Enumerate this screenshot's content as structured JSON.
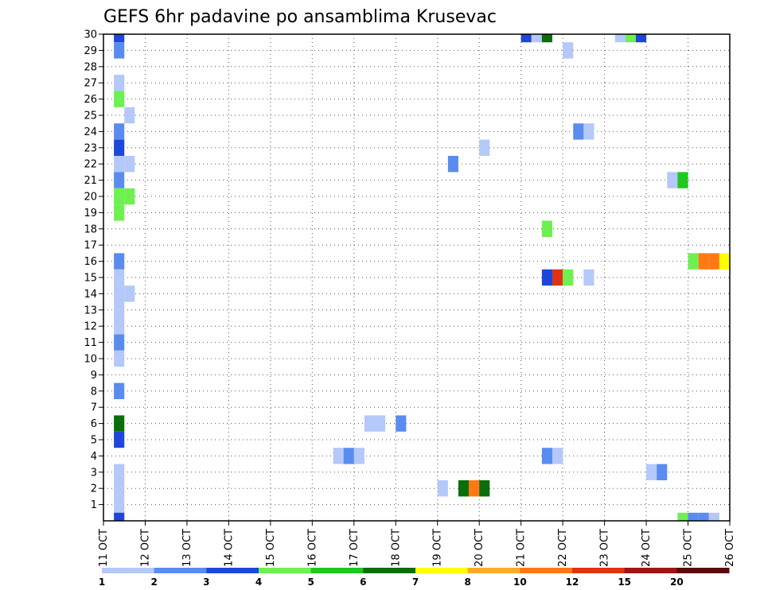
{
  "chart_data": {
    "type": "heatmap",
    "title": "GEFS 6hr padavine po ansamblima Krusevac",
    "xlabel": "",
    "ylabel": "",
    "x_ticks": [
      "11 OCT",
      "12 OCT",
      "13 OCT",
      "14 OCT",
      "15 OCT",
      "16 OCT",
      "17 OCT",
      "18 OCT",
      "19 OCT",
      "20 OCT",
      "21 OCT",
      "22 OCT",
      "23 OCT",
      "24 OCT",
      "25 OCT",
      "26 OCT"
    ],
    "xlim": [
      0,
      15
    ],
    "y_ticks": [
      1,
      2,
      3,
      4,
      5,
      6,
      7,
      8,
      9,
      10,
      11,
      12,
      13,
      14,
      15,
      16,
      17,
      18,
      19,
      20,
      21,
      22,
      23,
      24,
      25,
      26,
      27,
      28,
      29,
      30
    ],
    "ylim": [
      0,
      30
    ],
    "cell_width_days": 0.25,
    "grid": true,
    "colorbar": {
      "labels": [
        "1",
        "2",
        "3",
        "4",
        "5",
        "6",
        "7",
        "8",
        "10",
        "12",
        "15",
        "20"
      ],
      "colors": [
        "#b4c8fa",
        "#5a8cf0",
        "#1e46dc",
        "#6ef050",
        "#1ec81e",
        "#0a6e0a",
        "#ffff00",
        "#ffaa28",
        "#ff7814",
        "#e03214",
        "#a01414",
        "#5a0a0a"
      ]
    },
    "cells": [
      {
        "m": 30,
        "t": 0.25,
        "c": 3
      },
      {
        "m": 29,
        "t": 0.25,
        "c": 2
      },
      {
        "m": 27,
        "t": 0.25,
        "c": 1
      },
      {
        "m": 26,
        "t": 0.25,
        "c": 4
      },
      {
        "m": 25,
        "t": 0.5,
        "c": 1
      },
      {
        "m": 24,
        "t": 0.25,
        "c": 2
      },
      {
        "m": 23,
        "t": 0.25,
        "c": 3
      },
      {
        "m": 22,
        "t": 0.25,
        "c": 1
      },
      {
        "m": 22,
        "t": 0.5,
        "c": 1
      },
      {
        "m": 21,
        "t": 0.25,
        "c": 2
      },
      {
        "m": 20,
        "t": 0.25,
        "c": 4
      },
      {
        "m": 20,
        "t": 0.5,
        "c": 4
      },
      {
        "m": 19,
        "t": 0.25,
        "c": 4
      },
      {
        "m": 16,
        "t": 0.25,
        "c": 2
      },
      {
        "m": 15,
        "t": 0.25,
        "c": 1
      },
      {
        "m": 14,
        "t": 0.25,
        "c": 1
      },
      {
        "m": 14,
        "t": 0.5,
        "c": 1
      },
      {
        "m": 13,
        "t": 0.25,
        "c": 1
      },
      {
        "m": 12,
        "t": 0.25,
        "c": 1
      },
      {
        "m": 11,
        "t": 0.25,
        "c": 2
      },
      {
        "m": 10,
        "t": 0.25,
        "c": 1
      },
      {
        "m": 8,
        "t": 0.25,
        "c": 2
      },
      {
        "m": 6,
        "t": 0.25,
        "c": 6
      },
      {
        "m": 5,
        "t": 0.25,
        "c": 3
      },
      {
        "m": 3,
        "t": 0.25,
        "c": 1
      },
      {
        "m": 2,
        "t": 0.25,
        "c": 1
      },
      {
        "m": 1,
        "t": 0.25,
        "c": 1
      },
      {
        "m": 0,
        "t": 0.25,
        "c": 3
      },
      {
        "m": 30,
        "t": 10.0,
        "c": 3
      },
      {
        "m": 30,
        "t": 10.25,
        "c": 1
      },
      {
        "m": 30,
        "t": 10.5,
        "c": 6
      },
      {
        "m": 30,
        "t": 12.25,
        "c": 1
      },
      {
        "m": 30,
        "t": 12.5,
        "c": 4
      },
      {
        "m": 30,
        "t": 12.75,
        "c": 3
      },
      {
        "m": 29,
        "t": 11.0,
        "c": 1
      },
      {
        "m": 24,
        "t": 11.25,
        "c": 2
      },
      {
        "m": 24,
        "t": 11.5,
        "c": 1
      },
      {
        "m": 23,
        "t": 9.0,
        "c": 1
      },
      {
        "m": 22,
        "t": 8.25,
        "c": 2
      },
      {
        "m": 21,
        "t": 13.5,
        "c": 1
      },
      {
        "m": 21,
        "t": 13.75,
        "c": 5
      },
      {
        "m": 18,
        "t": 10.5,
        "c": 4
      },
      {
        "m": 16,
        "t": 14.0,
        "c": 4
      },
      {
        "m": 16,
        "t": 14.25,
        "c": 9
      },
      {
        "m": 16,
        "t": 14.5,
        "c": 9
      },
      {
        "m": 16,
        "t": 14.75,
        "c": 7
      },
      {
        "m": 16,
        "t": 15.0,
        "c": 8
      },
      {
        "m": 15,
        "t": 10.5,
        "c": 3
      },
      {
        "m": 15,
        "t": 10.75,
        "c": 10
      },
      {
        "m": 15,
        "t": 11.0,
        "c": 4
      },
      {
        "m": 15,
        "t": 11.5,
        "c": 1
      },
      {
        "m": 6,
        "t": 6.25,
        "c": 1
      },
      {
        "m": 6,
        "t": 6.5,
        "c": 1
      },
      {
        "m": 6,
        "t": 7.0,
        "c": 2
      },
      {
        "m": 4,
        "t": 5.5,
        "c": 1
      },
      {
        "m": 4,
        "t": 5.75,
        "c": 2
      },
      {
        "m": 4,
        "t": 6.0,
        "c": 1
      },
      {
        "m": 4,
        "t": 10.5,
        "c": 2
      },
      {
        "m": 4,
        "t": 10.75,
        "c": 1
      },
      {
        "m": 3,
        "t": 13.0,
        "c": 1
      },
      {
        "m": 3,
        "t": 13.25,
        "c": 2
      },
      {
        "m": 2,
        "t": 8.0,
        "c": 1
      },
      {
        "m": 2,
        "t": 8.5,
        "c": 6
      },
      {
        "m": 2,
        "t": 8.75,
        "c": 9
      },
      {
        "m": 2,
        "t": 9.0,
        "c": 6
      },
      {
        "m": 0,
        "t": 13.75,
        "c": 4
      },
      {
        "m": 0,
        "t": 14.0,
        "c": 2
      },
      {
        "m": 0,
        "t": 14.25,
        "c": 2
      },
      {
        "m": 0,
        "t": 14.5,
        "c": 1
      }
    ]
  }
}
